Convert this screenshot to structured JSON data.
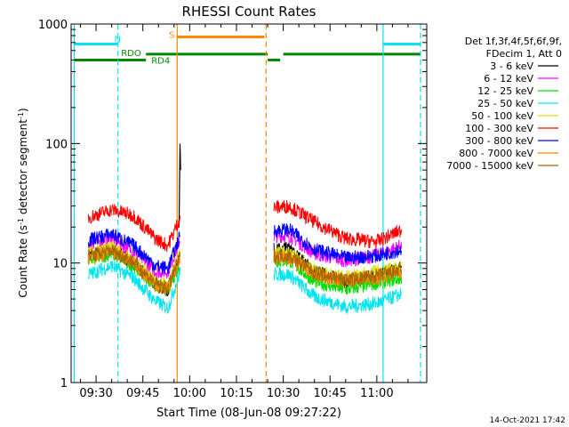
{
  "chart_data": {
    "type": "line",
    "title": "RHESSI Count Rates",
    "xlabel": "Start Time (08-Jun-08 09:27:22)",
    "ylabel_main": "Count Rate (s",
    "ylabel_sup1": "-1",
    "ylabel_mid": " detector segment",
    "ylabel_sup2": "-1",
    "ylabel_end": ")",
    "yscale": "log",
    "ylim": [
      1,
      1000
    ],
    "xlim_minutes": [
      562,
      676
    ],
    "x_ticks": [
      {
        "label": "09:30",
        "min": 570
      },
      {
        "label": "09:45",
        "min": 585
      },
      {
        "label": "10:00",
        "min": 600
      },
      {
        "label": "10:15",
        "min": 615
      },
      {
        "label": "10:30",
        "min": 630
      },
      {
        "label": "10:45",
        "min": 645
      },
      {
        "label": "11:00",
        "min": 660
      }
    ],
    "y_ticks": [
      {
        "label": "1",
        "value": 1
      },
      {
        "label": "10",
        "value": 10
      },
      {
        "label": "100",
        "value": 100
      },
      {
        "label": "1000",
        "value": 1000
      }
    ],
    "legend_header": [
      "Det 1f,3f,4f,5f,6f,9f,",
      "FDecim 1, Att 0"
    ],
    "series": [
      {
        "name": "3 - 6 keV",
        "color": "#000000",
        "points": [
          [
            567.5,
            11.5
          ],
          [
            575,
            13
          ],
          [
            582,
            10
          ],
          [
            589,
            6.5
          ],
          [
            593,
            6
          ],
          [
            597,
            12
          ],
          [
            632,
            13
          ],
          [
            640,
            8.5
          ],
          [
            650,
            7
          ],
          [
            660,
            8
          ],
          [
            668,
            9
          ]
        ]
      },
      {
        "name": "6 - 12 keV",
        "color": "#ff00ff",
        "points": [
          [
            567.5,
            14.5
          ],
          [
            575,
            16
          ],
          [
            582,
            12.5
          ],
          [
            589,
            8.5
          ],
          [
            593,
            8.5
          ],
          [
            597,
            16
          ],
          [
            632,
            17
          ],
          [
            640,
            12
          ],
          [
            650,
            10.5
          ],
          [
            660,
            11.5
          ],
          [
            668,
            14
          ]
        ]
      },
      {
        "name": "12 - 25 keV",
        "color": "#00dd00",
        "points": [
          [
            567.5,
            10.5
          ],
          [
            575,
            12
          ],
          [
            582,
            9.5
          ],
          [
            589,
            6.5
          ],
          [
            593,
            6
          ],
          [
            597,
            10
          ],
          [
            632,
            10.5
          ],
          [
            640,
            7
          ],
          [
            650,
            6
          ],
          [
            660,
            6.8
          ],
          [
            668,
            7.5
          ]
        ]
      },
      {
        "name": "25 - 50 keV",
        "color": "#00e5ee",
        "points": [
          [
            567.5,
            8
          ],
          [
            575,
            9.5
          ],
          [
            582,
            7.5
          ],
          [
            589,
            4.8
          ],
          [
            593,
            4.2
          ],
          [
            597,
            8.5
          ],
          [
            632,
            8
          ],
          [
            640,
            5.2
          ],
          [
            650,
            4.3
          ],
          [
            660,
            4.6
          ],
          [
            668,
            5.5
          ]
        ]
      },
      {
        "name": "50 - 100 keV",
        "color": "#dddd00",
        "points": [
          [
            567.5,
            12
          ],
          [
            575,
            13.5
          ],
          [
            582,
            10.5
          ],
          [
            589,
            7
          ],
          [
            593,
            6.5
          ],
          [
            597,
            12.5
          ],
          [
            632,
            12
          ],
          [
            640,
            8.5
          ],
          [
            650,
            7.5
          ],
          [
            660,
            8.5
          ],
          [
            668,
            9
          ]
        ]
      },
      {
        "name": "100 - 300 keV",
        "color": "#ff0000",
        "points": [
          [
            567.5,
            24
          ],
          [
            575,
            28
          ],
          [
            582,
            25
          ],
          [
            589,
            16
          ],
          [
            593,
            14
          ],
          [
            597,
            24
          ],
          [
            632,
            30
          ],
          [
            640,
            22
          ],
          [
            650,
            16
          ],
          [
            660,
            15
          ],
          [
            668,
            19
          ]
        ]
      },
      {
        "name": "300 - 800 keV",
        "color": "#0000ff",
        "points": [
          [
            567.5,
            15.5
          ],
          [
            575,
            17.5
          ],
          [
            582,
            14
          ],
          [
            589,
            9.5
          ],
          [
            593,
            9
          ],
          [
            597,
            17
          ],
          [
            632,
            19
          ],
          [
            640,
            13
          ],
          [
            650,
            11
          ],
          [
            660,
            11.5
          ],
          [
            668,
            13
          ]
        ]
      },
      {
        "name": "800 - 7000 keV",
        "color": "#ff8800",
        "points": [
          [
            567.5,
            11
          ],
          [
            575,
            12.5
          ],
          [
            582,
            10
          ],
          [
            589,
            6.5
          ],
          [
            593,
            6
          ],
          [
            597,
            11
          ],
          [
            632,
            11
          ],
          [
            640,
            8
          ],
          [
            650,
            7
          ],
          [
            660,
            7.5
          ],
          [
            668,
            8.5
          ]
        ]
      },
      {
        "name": "7000 - 15000 keV",
        "color": "#aa6600",
        "points": [
          [
            567.5,
            11.5
          ],
          [
            575,
            12.8
          ],
          [
            582,
            10.2
          ],
          [
            589,
            6.7
          ],
          [
            593,
            6.2
          ],
          [
            597,
            11.5
          ],
          [
            632,
            11.5
          ],
          [
            640,
            8.3
          ],
          [
            650,
            7.2
          ],
          [
            660,
            7.8
          ],
          [
            668,
            8.8
          ]
        ]
      }
    ],
    "flags": [
      {
        "label": "N",
        "color": "#00e5ee",
        "value": 680,
        "start": 563,
        "end": 577
      },
      {
        "label": "N",
        "color": "#00e5ee",
        "value": 680,
        "start": 662,
        "end": 674
      },
      {
        "label": "S",
        "color": "#ff8800",
        "value": 780,
        "start": 596,
        "end": 624
      },
      {
        "label": "RDO",
        "color": "#008800",
        "value": 560,
        "start": 586,
        "end": 625
      },
      {
        "label": "RDO",
        "color": "#008800",
        "value": 560,
        "start": 630,
        "end": 674
      },
      {
        "label": "RD4",
        "color": "#008800",
        "value": 500,
        "start": 563,
        "end": 586
      },
      {
        "label": "RD4",
        "color": "#008800",
        "value": 500,
        "start": 625,
        "end": 629
      }
    ],
    "vlines": [
      {
        "min": 563,
        "color": "#00e5ee",
        "style": "solid"
      },
      {
        "min": 577,
        "color": "#00e5ee",
        "style": "dashed"
      },
      {
        "min": 596,
        "color": "#ff8800",
        "style": "solid"
      },
      {
        "min": 624.5,
        "color": "#ff8800",
        "style": "dashed"
      },
      {
        "min": 662,
        "color": "#00e5ee",
        "style": "solid"
      },
      {
        "min": 674,
        "color": "#00e5ee",
        "style": "dashed"
      }
    ],
    "gap": [
      597,
      627
    ],
    "footer": "14-Oct-2021 17:42"
  }
}
